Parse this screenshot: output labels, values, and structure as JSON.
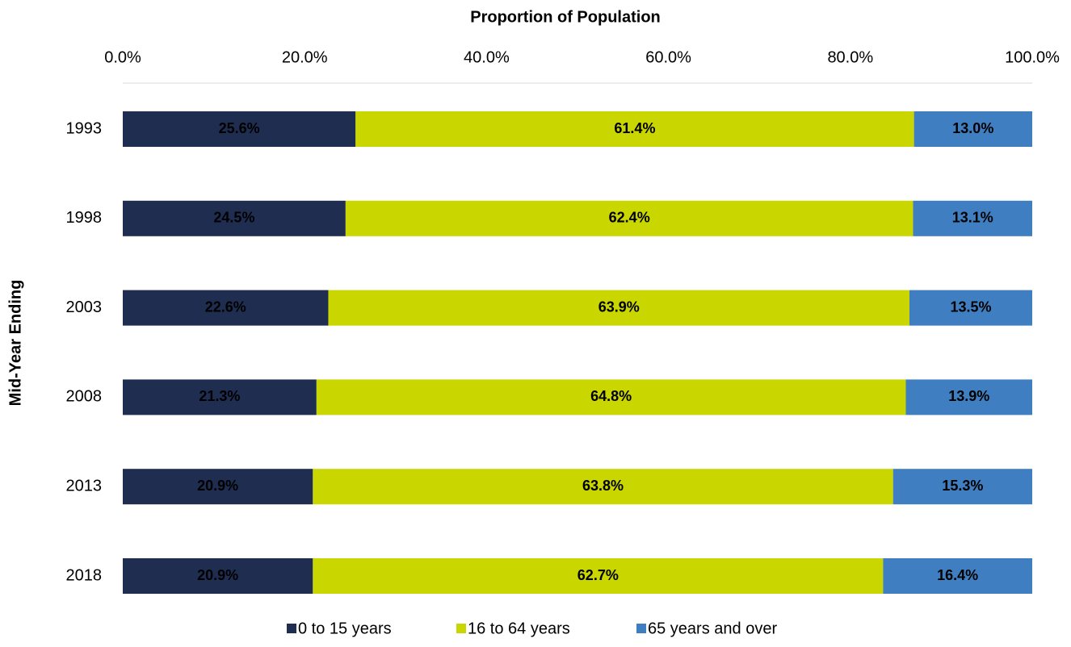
{
  "chart_data": {
    "type": "stacked_bar_horizontal",
    "title": "Proportion of Population",
    "y_label": "Mid-Year Ending",
    "categories": [
      "1993",
      "1998",
      "2003",
      "2008",
      "2013",
      "2018"
    ],
    "series": [
      {
        "name": "0 to 15 years",
        "color": "#1f2d50",
        "values": [
          25.6,
          24.5,
          22.6,
          21.3,
          20.9,
          20.9
        ],
        "value_labels": [
          "25.6%",
          "24.5%",
          "22.6%",
          "21.3%",
          "20.9%",
          "20.9%"
        ]
      },
      {
        "name": "16 to 64 years",
        "color": "#c9d600",
        "values": [
          61.4,
          62.4,
          63.9,
          64.8,
          63.8,
          62.7
        ],
        "value_labels": [
          "61.4%",
          "62.4%",
          "63.9%",
          "64.8%",
          "63.8%",
          "62.7%"
        ]
      },
      {
        "name": "65 years and over",
        "color": "#3f7fc1",
        "values": [
          13.0,
          13.1,
          13.5,
          13.9,
          15.3,
          16.4
        ],
        "value_labels": [
          "13.0%",
          "13.1%",
          "13.5%",
          "13.9%",
          "15.3%",
          "16.4%"
        ]
      }
    ],
    "xlim": [
      0,
      100
    ],
    "xticks": [
      {
        "value": 0,
        "label": "0.0%"
      },
      {
        "value": 20,
        "label": "20.0%"
      },
      {
        "value": 40,
        "label": "40.0%"
      },
      {
        "value": 60,
        "label": "60.0%"
      },
      {
        "value": 80,
        "label": "80.0%"
      },
      {
        "value": 100,
        "label": "100.0%"
      }
    ],
    "grid": false,
    "legend": "bottom"
  }
}
